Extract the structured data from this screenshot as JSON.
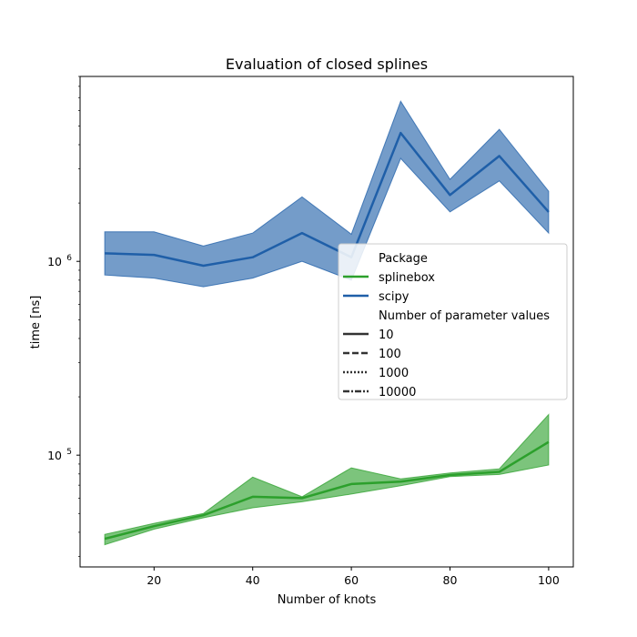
{
  "chart_data": {
    "type": "line",
    "title": "Evaluation of closed splines",
    "xlabel": "Number of knots",
    "ylabel": "time [ns]",
    "yscale": "log",
    "xlim": [
      5,
      105
    ],
    "ylim": [
      26500,
      9000000
    ],
    "x_ticks": [
      20,
      40,
      60,
      80,
      100
    ],
    "y_ticks": [
      {
        "value": 100000,
        "base": "10",
        "exp": "5"
      },
      {
        "value": 1000000,
        "base": "10",
        "exp": "6"
      }
    ],
    "x": [
      10,
      20,
      30,
      40,
      50,
      60,
      70,
      80,
      90,
      100
    ],
    "series": [
      {
        "name": "splinebox",
        "color": "#2ca02c",
        "values": [
          37000,
          43000,
          49000,
          61000,
          60000,
          71000,
          73000,
          79000,
          82000,
          117000
        ],
        "lower": [
          34500,
          41500,
          47500,
          53500,
          57500,
          63000,
          69500,
          77500,
          79500,
          89000
        ],
        "upper": [
          39000,
          44500,
          50000,
          77000,
          61000,
          86000,
          75500,
          81000,
          85000,
          162000
        ]
      },
      {
        "name": "scipy",
        "color": "#1f5fa8",
        "values": [
          1100000,
          1080000,
          950000,
          1050000,
          1400000,
          1050000,
          4600000,
          2200000,
          3500000,
          1800000
        ],
        "lower": [
          850000,
          820000,
          740000,
          820000,
          1000000,
          800000,
          3400000,
          1800000,
          2600000,
          1400000
        ],
        "upper": [
          1420000,
          1420000,
          1200000,
          1400000,
          2150000,
          1380000,
          6700000,
          2650000,
          4800000,
          2300000
        ]
      }
    ],
    "legend": {
      "placement": "center-right",
      "hue_title": "Package",
      "hue_items": [
        {
          "label": "splinebox",
          "color": "#2ca02c"
        },
        {
          "label": "scipy",
          "color": "#1f5fa8"
        }
      ],
      "style_title": "Number of parameter values",
      "style_items": [
        {
          "label": "10",
          "dash": "solid"
        },
        {
          "label": "100",
          "dash": "dashed"
        },
        {
          "label": "1000",
          "dash": "dotted"
        },
        {
          "label": "10000",
          "dash": "dashdot"
        }
      ]
    }
  }
}
